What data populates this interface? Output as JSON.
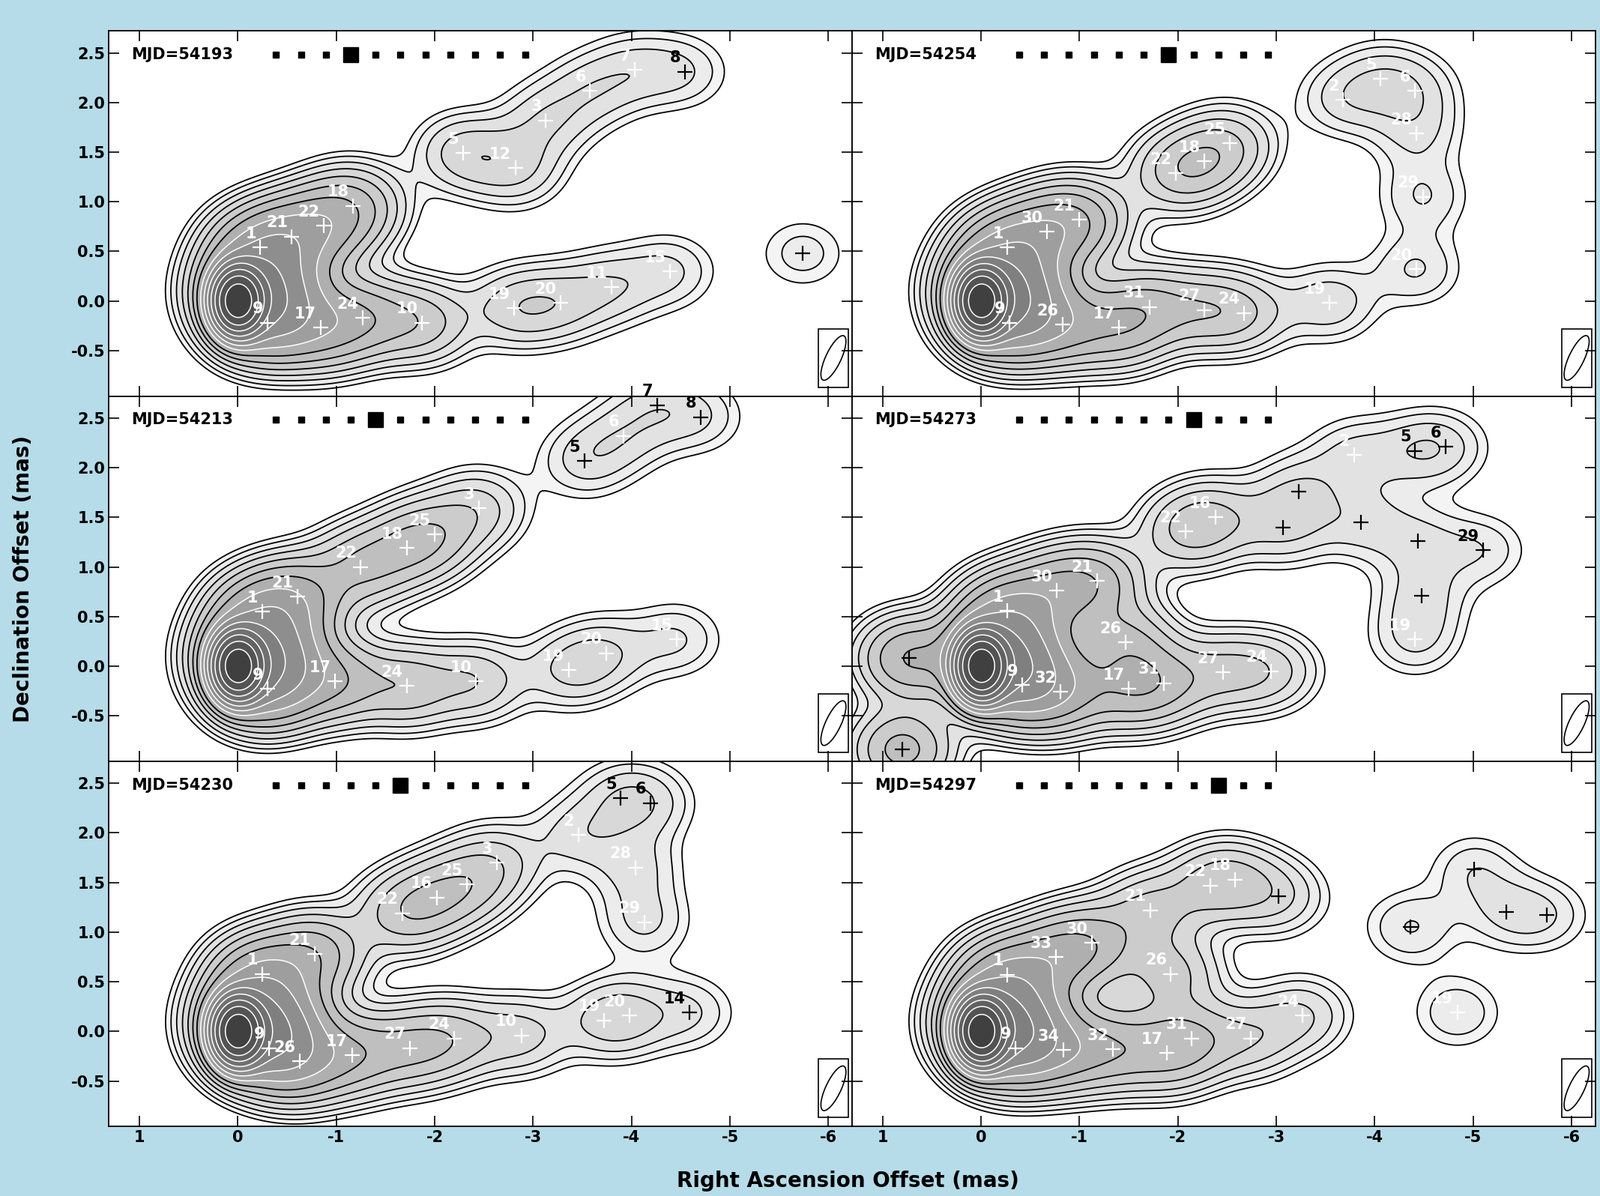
{
  "figure": {
    "xlabel": "Right Ascension Offset (mas)",
    "ylabel": "Declination Offset (mas)"
  },
  "chart_data": [
    {
      "type": "contour",
      "annotation": "MJD=54193",
      "epoch_markers": {
        "count": 11,
        "current": 3
      },
      "xlim": [
        1.31,
        -6.24
      ],
      "ylim": [
        -0.96,
        2.72
      ],
      "xticks": [
        1,
        0,
        -1,
        -2,
        -3,
        -4,
        -5,
        -6
      ],
      "yticks": [
        {
          "value": -0.5,
          "label": "-0.5"
        },
        {
          "value": 0,
          "label": "0.0"
        },
        {
          "value": 0.5,
          "label": "0.5"
        },
        {
          "value": 1,
          "label": "1.0"
        },
        {
          "value": 1.5,
          "label": "1.5"
        },
        {
          "value": 2,
          "label": "2.0"
        },
        {
          "value": 2.5,
          "label": "2.5"
        }
      ],
      "tick_labels": "y",
      "core": {
        "x": 0,
        "y": 0
      },
      "components": [
        {
          "label": "1",
          "x": -0.23,
          "y": 0.54
        },
        {
          "label": "21",
          "x": -0.55,
          "y": 0.65
        },
        {
          "label": "22",
          "x": -0.87,
          "y": 0.76
        },
        {
          "label": "18",
          "x": -1.17,
          "y": 0.96
        },
        {
          "label": "9",
          "x": -0.3,
          "y": -0.22
        },
        {
          "label": "17",
          "x": -0.84,
          "y": -0.27
        },
        {
          "label": "24",
          "x": -1.27,
          "y": -0.17
        },
        {
          "label": "10",
          "x": -1.87,
          "y": -0.22
        },
        {
          "label": "5",
          "x": -2.29,
          "y": 1.49
        },
        {
          "label": "12",
          "x": -2.82,
          "y": 1.34
        },
        {
          "label": "3",
          "x": -3.13,
          "y": 1.82
        },
        {
          "label": "6",
          "x": -3.58,
          "y": 2.12
        },
        {
          "label": "7",
          "x": -4.03,
          "y": 2.33
        },
        {
          "label": "8",
          "x": -4.54,
          "y": 2.31,
          "color": "black"
        },
        {
          "label": "19",
          "x": -2.81,
          "y": -0.07
        },
        {
          "label": "20",
          "x": -3.28,
          "y": -0.02
        },
        {
          "label": "11",
          "x": -3.8,
          "y": 0.14
        },
        {
          "label": "15",
          "x": -4.39,
          "y": 0.3
        },
        {
          "label": null,
          "x": -5.74,
          "y": 0.48,
          "color": "black"
        }
      ]
    },
    {
      "type": "contour",
      "annotation": "MJD=54254",
      "epoch_markers": {
        "count": 11,
        "current": 6
      },
      "xlim": [
        1.31,
        -6.24
      ],
      "ylim": [
        -0.96,
        2.72
      ],
      "xticks": [
        1,
        0,
        -1,
        -2,
        -3,
        -4,
        -5,
        -6
      ],
      "yticks": [
        {
          "value": -0.5,
          "label": "-0.5"
        },
        {
          "value": 0,
          "label": "0.0"
        },
        {
          "value": 0.5,
          "label": "0.5"
        },
        {
          "value": 1,
          "label": "1.0"
        },
        {
          "value": 1.5,
          "label": "1.5"
        },
        {
          "value": 2,
          "label": "2.0"
        },
        {
          "value": 2.5,
          "label": "2.5"
        }
      ],
      "tick_labels": false,
      "core": {
        "x": 0,
        "y": 0
      },
      "components": [
        {
          "label": "1",
          "x": -0.27,
          "y": 0.54
        },
        {
          "label": "30",
          "x": -0.67,
          "y": 0.7
        },
        {
          "label": "21",
          "x": -1.0,
          "y": 0.82
        },
        {
          "label": "22",
          "x": -1.98,
          "y": 1.29
        },
        {
          "label": "18",
          "x": -2.27,
          "y": 1.41
        },
        {
          "label": "25",
          "x": -2.53,
          "y": 1.59
        },
        {
          "label": "9",
          "x": -0.29,
          "y": -0.22
        },
        {
          "label": "26",
          "x": -0.83,
          "y": -0.24
        },
        {
          "label": "17",
          "x": -1.4,
          "y": -0.27
        },
        {
          "label": "31",
          "x": -1.71,
          "y": -0.06
        },
        {
          "label": "27",
          "x": -2.27,
          "y": -0.09
        },
        {
          "label": "24",
          "x": -2.67,
          "y": -0.12
        },
        {
          "label": "19",
          "x": -3.54,
          "y": -0.02
        },
        {
          "label": "20",
          "x": -4.42,
          "y": 0.32
        },
        {
          "label": "29",
          "x": -4.49,
          "y": 1.05
        },
        {
          "label": "28",
          "x": -4.42,
          "y": 1.69
        },
        {
          "label": "2",
          "x": -3.68,
          "y": 2.03
        },
        {
          "label": "5",
          "x": -4.06,
          "y": 2.24
        },
        {
          "label": "6",
          "x": -4.41,
          "y": 2.12
        }
      ]
    },
    {
      "type": "contour",
      "annotation": "MJD=54213",
      "epoch_markers": {
        "count": 11,
        "current": 4
      },
      "xlim": [
        1.31,
        -6.24
      ],
      "ylim": [
        -0.96,
        2.72
      ],
      "xticks": [
        1,
        0,
        -1,
        -2,
        -3,
        -4,
        -5,
        -6
      ],
      "yticks": [
        {
          "value": -0.5,
          "label": "-0.5"
        },
        {
          "value": 0,
          "label": "0.0"
        },
        {
          "value": 0.5,
          "label": "0.5"
        },
        {
          "value": 1,
          "label": "1.0"
        },
        {
          "value": 1.5,
          "label": "1.5"
        },
        {
          "value": 2,
          "label": "2.0"
        },
        {
          "value": 2.5,
          "label": "2.5"
        }
      ],
      "tick_labels": "y",
      "core": {
        "x": 0,
        "y": 0
      },
      "components": [
        {
          "label": "1",
          "x": -0.25,
          "y": 0.55
        },
        {
          "label": "21",
          "x": -0.61,
          "y": 0.7
        },
        {
          "label": "22",
          "x": -1.25,
          "y": 1.0
        },
        {
          "label": "18",
          "x": -1.72,
          "y": 1.19
        },
        {
          "label": "25",
          "x": -2.0,
          "y": 1.33
        },
        {
          "label": "9",
          "x": -0.3,
          "y": -0.23
        },
        {
          "label": "17",
          "x": -0.99,
          "y": -0.15
        },
        {
          "label": "24",
          "x": -1.72,
          "y": -0.2
        },
        {
          "label": "10",
          "x": -2.42,
          "y": -0.15
        },
        {
          "label": "3",
          "x": -2.45,
          "y": 1.59
        },
        {
          "label": "5",
          "x": -3.52,
          "y": 2.07,
          "color": "black"
        },
        {
          "label": "7",
          "x": -4.26,
          "y": 2.63,
          "color": "black"
        },
        {
          "label": "8",
          "x": -4.7,
          "y": 2.51,
          "color": "black"
        },
        {
          "label": "6",
          "x": -3.92,
          "y": 2.32
        },
        {
          "label": "19",
          "x": -3.36,
          "y": -0.04
        },
        {
          "label": "20",
          "x": -3.74,
          "y": 0.13
        },
        {
          "label": "15",
          "x": -4.46,
          "y": 0.27
        }
      ]
    },
    {
      "type": "contour",
      "annotation": "MJD=54273",
      "epoch_markers": {
        "count": 11,
        "current": 7
      },
      "xlim": [
        1.31,
        -6.24
      ],
      "ylim": [
        -0.96,
        2.72
      ],
      "xticks": [
        1,
        0,
        -1,
        -2,
        -3,
        -4,
        -5,
        -6
      ],
      "yticks": [
        {
          "value": -0.5,
          "label": "-0.5"
        },
        {
          "value": 0,
          "label": "0.0"
        },
        {
          "value": 0.5,
          "label": "0.5"
        },
        {
          "value": 1,
          "label": "1.0"
        },
        {
          "value": 1.5,
          "label": "1.5"
        },
        {
          "value": 2,
          "label": "2.0"
        },
        {
          "value": 2.5,
          "label": "2.5"
        }
      ],
      "tick_labels": false,
      "core": {
        "x": 0,
        "y": 0
      },
      "components": [
        {
          "label": "1",
          "x": -0.27,
          "y": 0.56
        },
        {
          "label": "30",
          "x": -0.77,
          "y": 0.76
        },
        {
          "label": "21",
          "x": -1.18,
          "y": 0.86
        },
        {
          "label": "22",
          "x": -2.08,
          "y": 1.36
        },
        {
          "label": "16",
          "x": -2.38,
          "y": 1.5
        },
        {
          "label": "26",
          "x": -1.47,
          "y": 0.24
        },
        {
          "label": "9",
          "x": -0.42,
          "y": -0.19
        },
        {
          "label": "32",
          "x": -0.81,
          "y": -0.26
        },
        {
          "label": "17",
          "x": -1.5,
          "y": -0.23
        },
        {
          "label": "31",
          "x": -1.86,
          "y": -0.17
        },
        {
          "label": "27",
          "x": -2.46,
          "y": -0.06
        },
        {
          "label": "24",
          "x": -2.95,
          "y": -0.05
        },
        {
          "label": "19",
          "x": -4.41,
          "y": 0.27
        },
        {
          "label": "29",
          "x": -5.1,
          "y": 1.17,
          "color": "black"
        },
        {
          "label": "5",
          "x": -4.41,
          "y": 2.17,
          "color": "black"
        },
        {
          "label": "6",
          "x": -4.72,
          "y": 2.21,
          "color": "black"
        },
        {
          "label": "2",
          "x": -3.79,
          "y": 2.13
        },
        {
          "label": null,
          "x": -3.23,
          "y": 1.76,
          "color": "black"
        },
        {
          "label": null,
          "x": -3.07,
          "y": 1.4,
          "color": "black"
        },
        {
          "label": null,
          "x": -3.86,
          "y": 1.45,
          "color": "black"
        },
        {
          "label": null,
          "x": -4.44,
          "y": 1.26,
          "color": "black"
        },
        {
          "label": null,
          "x": -4.48,
          "y": 0.71,
          "color": "black"
        },
        {
          "label": null,
          "x": 0.73,
          "y": 0.08,
          "color": "black"
        },
        {
          "label": null,
          "x": 0.8,
          "y": -0.84,
          "color": "black"
        }
      ]
    },
    {
      "type": "contour",
      "annotation": "MJD=54230",
      "epoch_markers": {
        "count": 11,
        "current": 5
      },
      "xlim": [
        1.31,
        -6.24
      ],
      "ylim": [
        -0.96,
        2.72
      ],
      "xticks": [
        1,
        0,
        -1,
        -2,
        -3,
        -4,
        -5,
        -6
      ],
      "yticks": [
        {
          "value": -0.5,
          "label": "-0.5"
        },
        {
          "value": 0,
          "label": "0.0"
        },
        {
          "value": 0.5,
          "label": "0.5"
        },
        {
          "value": 1,
          "label": "1.0"
        },
        {
          "value": 1.5,
          "label": "1.5"
        },
        {
          "value": 2,
          "label": "2.0"
        },
        {
          "value": 2.5,
          "label": "2.5"
        }
      ],
      "tick_labels": true,
      "core": {
        "x": 0,
        "y": 0
      },
      "components": [
        {
          "label": "1",
          "x": -0.25,
          "y": 0.58
        },
        {
          "label": "21",
          "x": -0.78,
          "y": 0.78
        },
        {
          "label": "22",
          "x": -1.67,
          "y": 1.19
        },
        {
          "label": "16",
          "x": -2.02,
          "y": 1.35
        },
        {
          "label": "25",
          "x": -2.33,
          "y": 1.48
        },
        {
          "label": "3",
          "x": -2.63,
          "y": 1.7
        },
        {
          "label": "9",
          "x": -0.32,
          "y": -0.17
        },
        {
          "label": "26",
          "x": -0.63,
          "y": -0.3
        },
        {
          "label": "17",
          "x": -1.16,
          "y": -0.24
        },
        {
          "label": "27",
          "x": -1.75,
          "y": -0.17
        },
        {
          "label": "24",
          "x": -2.2,
          "y": -0.07
        },
        {
          "label": "10",
          "x": -2.88,
          "y": -0.04
        },
        {
          "label": "19",
          "x": -3.72,
          "y": 0.11
        },
        {
          "label": "20",
          "x": -3.98,
          "y": 0.16
        },
        {
          "label": "14",
          "x": -4.59,
          "y": 0.19,
          "color": "black"
        },
        {
          "label": "5",
          "x": -3.89,
          "y": 2.35,
          "color": "black"
        },
        {
          "label": "6",
          "x": -4.19,
          "y": 2.3,
          "color": "black"
        },
        {
          "label": "2",
          "x": -3.46,
          "y": 1.98
        },
        {
          "label": "28",
          "x": -4.04,
          "y": 1.65
        },
        {
          "label": "29",
          "x": -4.13,
          "y": 1.1
        }
      ]
    },
    {
      "type": "contour",
      "annotation": "MJD=54297",
      "epoch_markers": {
        "count": 11,
        "current": 8
      },
      "xlim": [
        1.31,
        -6.24
      ],
      "ylim": [
        -0.96,
        2.72
      ],
      "xticks": [
        1,
        0,
        -1,
        -2,
        -3,
        -4,
        -5,
        -6
      ],
      "yticks": [
        {
          "value": -0.5,
          "label": "-0.5"
        },
        {
          "value": 0,
          "label": "0.0"
        },
        {
          "value": 0.5,
          "label": "0.5"
        },
        {
          "value": 1,
          "label": "1.0"
        },
        {
          "value": 1.5,
          "label": "1.5"
        },
        {
          "value": 2,
          "label": "2.0"
        },
        {
          "value": 2.5,
          "label": "2.5"
        }
      ],
      "tick_labels": "x",
      "core": {
        "x": 0,
        "y": 0
      },
      "components": [
        {
          "label": "1",
          "x": -0.27,
          "y": 0.57
        },
        {
          "label": "33",
          "x": -0.76,
          "y": 0.75
        },
        {
          "label": "30",
          "x": -1.13,
          "y": 0.89
        },
        {
          "label": "21",
          "x": -1.72,
          "y": 1.22
        },
        {
          "label": "22",
          "x": -2.33,
          "y": 1.47
        },
        {
          "label": "18",
          "x": -2.58,
          "y": 1.53
        },
        {
          "label": "26",
          "x": -1.93,
          "y": 0.58
        },
        {
          "label": "9",
          "x": -0.35,
          "y": -0.17
        },
        {
          "label": "34",
          "x": -0.84,
          "y": -0.19
        },
        {
          "label": "32",
          "x": -1.34,
          "y": -0.18
        },
        {
          "label": "17",
          "x": -1.89,
          "y": -0.22
        },
        {
          "label": "31",
          "x": -2.14,
          "y": -0.07
        },
        {
          "label": "27",
          "x": -2.74,
          "y": -0.07
        },
        {
          "label": "24",
          "x": -3.27,
          "y": 0.16
        },
        {
          "label": "19",
          "x": -4.84,
          "y": 0.19
        },
        {
          "label": null,
          "x": -3.02,
          "y": 1.36,
          "color": "black"
        },
        {
          "label": null,
          "x": -4.36,
          "y": 1.05,
          "color": "black"
        },
        {
          "label": null,
          "x": -5.01,
          "y": 1.63,
          "color": "black"
        },
        {
          "label": null,
          "x": -5.34,
          "y": 1.2,
          "color": "black"
        },
        {
          "label": null,
          "x": -5.75,
          "y": 1.17,
          "color": "black"
        }
      ]
    }
  ]
}
